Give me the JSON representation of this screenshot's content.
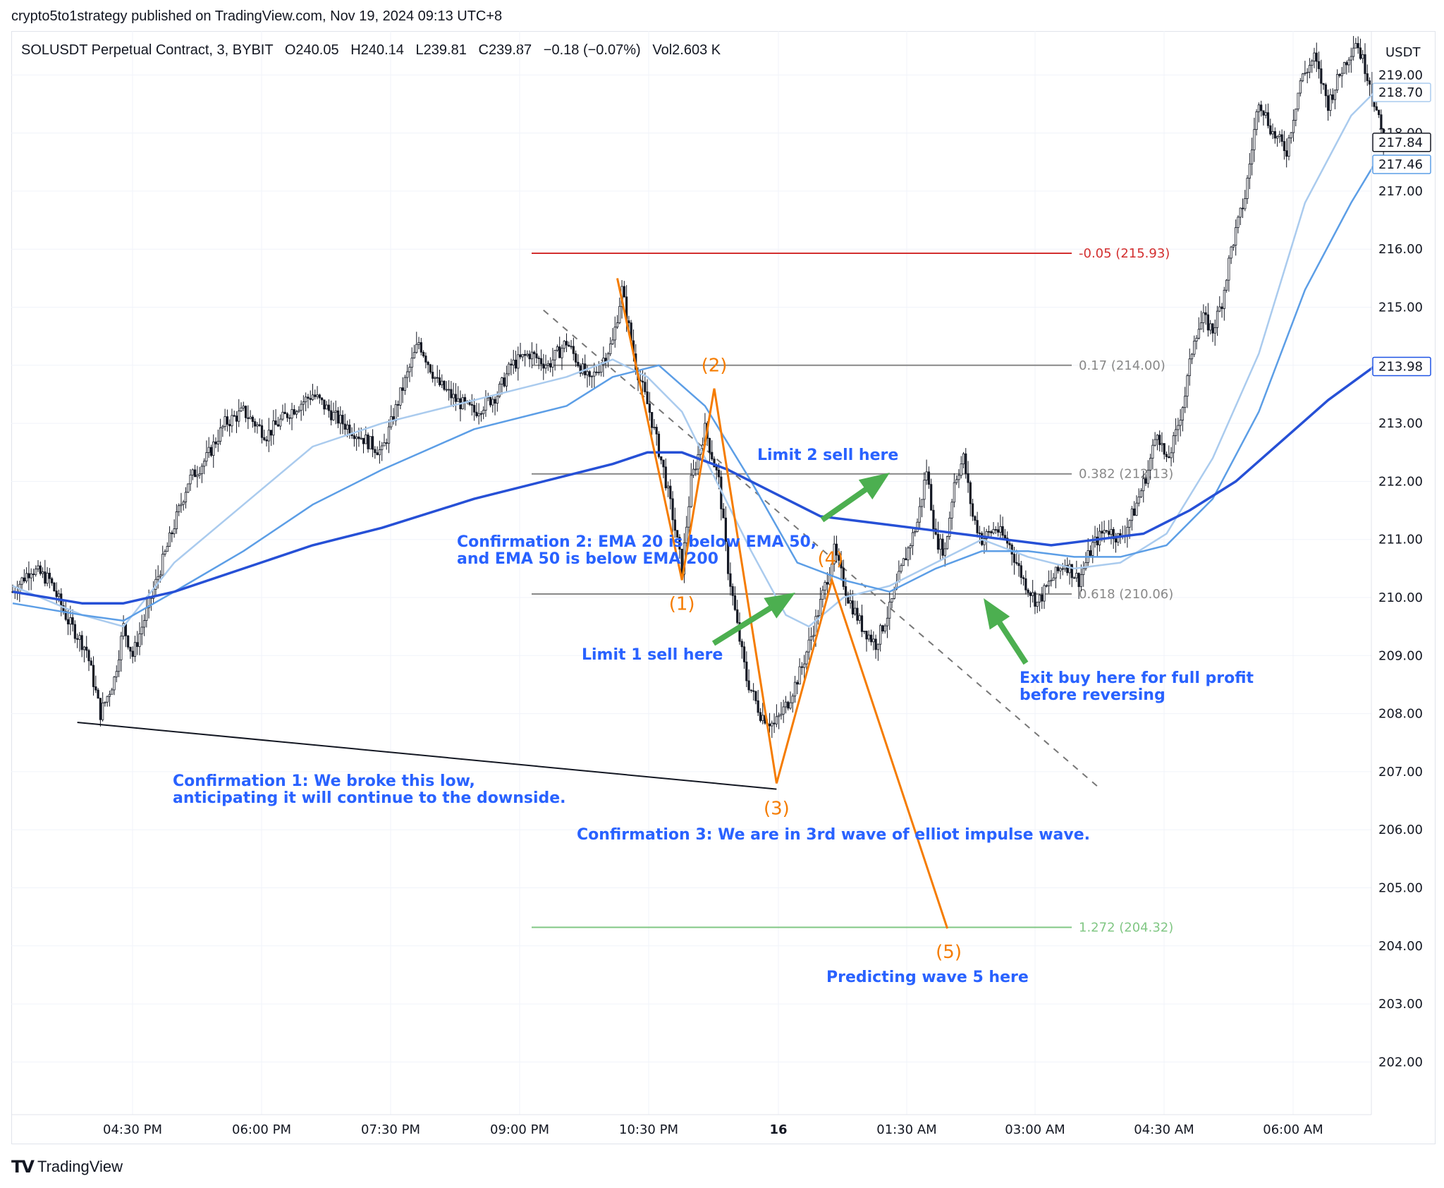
{
  "header": {
    "publisher": "crypto5to1strategy published on TradingView.com, Nov 19, 2024 09:13 UTC+8",
    "symbol_line": "SOLUSDT Perpetual Contract, 3, BYBIT   O240.05   H240.14   L239.81   C239.87   −0.18 (−0.07%)   Vol2.603 K"
  },
  "footer": {
    "brand": "TradingView",
    "logo": "TV"
  },
  "colors": {
    "ema20": "#aacbee",
    "ema50": "#5c9ee6",
    "ema200": "#2650d6",
    "wave": "#f57c00",
    "annotation": "#2962ff",
    "arrow": "#4caf50",
    "fib_red": "#d32f2f",
    "fib_grey": "#888888",
    "fib_green": "#81c784",
    "candle": "#131722"
  },
  "chart_data": {
    "type": "line",
    "title": "SOLUSDT Perpetual Contract, 3, BYBIT",
    "currency": "USDT",
    "xlabel": "",
    "ylabel": "",
    "x_ticks": [
      "04:30 PM",
      "06:00 PM",
      "07:30 PM",
      "09:00 PM",
      "10:30 PM",
      "16",
      "01:30 AM",
      "03:00 AM",
      "04:30 AM",
      "06:00 AM"
    ],
    "y_ticks": [
      "202.00",
      "203.00",
      "204.00",
      "205.00",
      "206.00",
      "207.00",
      "208.00",
      "209.00",
      "210.00",
      "211.00",
      "212.00",
      "213.00",
      "214.00",
      "215.00",
      "216.00",
      "217.00",
      "218.00",
      "219.00"
    ],
    "ylim": [
      201.2,
      219.9
    ],
    "grid": true,
    "price_labels": {
      "ema20": "218.70",
      "last": "217.84",
      "ema50": "217.46",
      "ema200": "213.98"
    },
    "price_path": [
      [
        0,
        210.1
      ],
      [
        8,
        210.5
      ],
      [
        16,
        210.3
      ],
      [
        24,
        209.6
      ],
      [
        32,
        209.1
      ],
      [
        38,
        208.0
      ],
      [
        44,
        208.6
      ],
      [
        48,
        209.5
      ],
      [
        52,
        209.0
      ],
      [
        60,
        210.0
      ],
      [
        68,
        211.0
      ],
      [
        76,
        212.0
      ],
      [
        84,
        212.4
      ],
      [
        92,
        213.0
      ],
      [
        100,
        213.2
      ],
      [
        110,
        212.8
      ],
      [
        120,
        213.2
      ],
      [
        130,
        213.5
      ],
      [
        140,
        213.1
      ],
      [
        150,
        212.8
      ],
      [
        160,
        212.5
      ],
      [
        168,
        213.5
      ],
      [
        176,
        214.4
      ],
      [
        184,
        213.7
      ],
      [
        192,
        213.4
      ],
      [
        200,
        213.2
      ],
      [
        210,
        213.5
      ],
      [
        216,
        214.0
      ],
      [
        224,
        214.2
      ],
      [
        232,
        214.0
      ],
      [
        240,
        214.4
      ],
      [
        250,
        213.7
      ],
      [
        260,
        214.4
      ],
      [
        264,
        215.3
      ],
      [
        270,
        214.0
      ],
      [
        276,
        213.2
      ],
      [
        282,
        212.2
      ],
      [
        286,
        211.4
      ],
      [
        290,
        210.5
      ],
      [
        294,
        212.0
      ],
      [
        300,
        212.9
      ],
      [
        306,
        212.0
      ],
      [
        310,
        210.5
      ],
      [
        314,
        209.5
      ],
      [
        318,
        208.6
      ],
      [
        324,
        208.0
      ],
      [
        330,
        207.8
      ],
      [
        336,
        208.2
      ],
      [
        342,
        208.8
      ],
      [
        348,
        209.6
      ],
      [
        352,
        210.2
      ],
      [
        356,
        210.8
      ],
      [
        362,
        210.0
      ],
      [
        368,
        209.5
      ],
      [
        374,
        209.2
      ],
      [
        380,
        209.8
      ],
      [
        386,
        210.6
      ],
      [
        392,
        211.3
      ],
      [
        396,
        212.2
      ],
      [
        400,
        211.0
      ],
      [
        404,
        210.8
      ],
      [
        408,
        212.0
      ],
      [
        412,
        212.4
      ],
      [
        416,
        211.4
      ],
      [
        420,
        211.0
      ],
      [
        426,
        211.2
      ],
      [
        432,
        210.9
      ],
      [
        438,
        210.3
      ],
      [
        444,
        209.9
      ],
      [
        450,
        210.3
      ],
      [
        456,
        210.6
      ],
      [
        462,
        210.3
      ],
      [
        468,
        210.9
      ],
      [
        474,
        211.2
      ],
      [
        480,
        211.0
      ],
      [
        486,
        211.5
      ],
      [
        492,
        212.2
      ],
      [
        496,
        212.9
      ],
      [
        500,
        212.3
      ],
      [
        504,
        212.8
      ],
      [
        508,
        213.5
      ],
      [
        512,
        214.5
      ],
      [
        516,
        214.8
      ],
      [
        520,
        214.6
      ],
      [
        524,
        215.1
      ],
      [
        528,
        216.0
      ],
      [
        534,
        216.9
      ],
      [
        540,
        218.6
      ],
      [
        546,
        218.0
      ],
      [
        552,
        217.7
      ],
      [
        558,
        218.9
      ],
      [
        564,
        219.3
      ],
      [
        570,
        218.5
      ],
      [
        576,
        219.1
      ],
      [
        582,
        219.6
      ],
      [
        588,
        218.9
      ],
      [
        594,
        217.84
      ]
    ],
    "series": [
      {
        "name": "EMA 20",
        "label": "218.70",
        "x": [
          0,
          30,
          48,
          70,
          100,
          130,
          160,
          200,
          240,
          260,
          275,
          290,
          305,
          320,
          335,
          345,
          360,
          380,
          400,
          420,
          440,
          460,
          480,
          500,
          520,
          540,
          560,
          580,
          590
        ],
        "values": [
          210.2,
          209.7,
          209.5,
          210.6,
          211.6,
          212.6,
          213.0,
          213.4,
          213.8,
          214.1,
          213.8,
          213.2,
          212.0,
          210.8,
          209.7,
          209.5,
          210.0,
          210.2,
          210.6,
          211.0,
          210.7,
          210.5,
          210.6,
          211.1,
          212.4,
          214.2,
          216.8,
          218.3,
          218.7
        ]
      },
      {
        "name": "EMA 50",
        "label": "217.46",
        "x": [
          0,
          30,
          48,
          70,
          100,
          130,
          160,
          200,
          240,
          260,
          280,
          300,
          320,
          340,
          360,
          380,
          400,
          420,
          440,
          460,
          480,
          500,
          520,
          540,
          560,
          580,
          590
        ],
        "values": [
          209.9,
          209.7,
          209.6,
          210.1,
          210.8,
          211.6,
          212.2,
          212.9,
          213.3,
          213.8,
          214.0,
          213.3,
          212.0,
          210.6,
          210.3,
          210.1,
          210.5,
          210.8,
          210.8,
          210.7,
          210.7,
          210.9,
          211.7,
          213.2,
          215.3,
          216.8,
          217.46
        ]
      },
      {
        "name": "EMA 200",
        "label": "213.98",
        "x": [
          0,
          30,
          48,
          70,
          100,
          130,
          160,
          200,
          240,
          260,
          275,
          290,
          310,
          330,
          350,
          370,
          390,
          410,
          430,
          450,
          470,
          490,
          510,
          530,
          550,
          570,
          590
        ],
        "values": [
          210.1,
          209.9,
          209.9,
          210.1,
          210.5,
          210.9,
          211.2,
          211.7,
          212.1,
          212.3,
          212.5,
          212.5,
          212.2,
          211.8,
          211.4,
          211.3,
          211.2,
          211.1,
          211.0,
          210.9,
          211.0,
          211.1,
          211.5,
          212.0,
          212.7,
          213.4,
          213.98
        ]
      }
    ],
    "fib_levels": [
      {
        "label": "-0.05 (215.93)",
        "price": 215.93,
        "color": "#d32f2f"
      },
      {
        "label": "0.17 (214.00)",
        "price": 214.0,
        "color": "#888888"
      },
      {
        "label": "0.382 (212.13)",
        "price": 212.13,
        "color": "#888888"
      },
      {
        "label": "0.618 (210.06)",
        "price": 210.06,
        "color": "#888888"
      },
      {
        "label": "1.272 (204.32)",
        "price": 204.32,
        "color": "#81c784"
      }
    ],
    "elliott_waves": [
      {
        "label": "",
        "bar": 262,
        "price": 215.5
      },
      {
        "label": "(1)",
        "bar": 290,
        "price": 210.3
      },
      {
        "label": "(2)",
        "bar": 304,
        "price": 213.6
      },
      {
        "label": "(3)",
        "bar": 331,
        "price": 206.8
      },
      {
        "label": "(4)",
        "bar": 355,
        "price": 210.3
      },
      {
        "label": "(5)",
        "bar": 405,
        "price": 204.3
      }
    ],
    "annotations": [
      {
        "id": "confirmation-1",
        "lines": [
          "Confirmation 1: We broke this low,",
          "anticipating it will continue to the downside."
        ]
      },
      {
        "id": "confirmation-2",
        "lines": [
          "Confirmation 2: EMA 20 is below EMA 50,",
          "and EMA 50 is below EMA 200"
        ]
      },
      {
        "id": "confirmation-3",
        "lines": [
          "Confirmation 3: We are in 3rd wave of elliot impulse wave."
        ]
      },
      {
        "id": "limit-1",
        "lines": [
          "Limit 1 sell here"
        ]
      },
      {
        "id": "limit-2",
        "lines": [
          "Limit 2 sell here"
        ]
      },
      {
        "id": "exit",
        "lines": [
          "Exit buy here for full profit",
          "before reversing"
        ]
      },
      {
        "id": "wave-5",
        "lines": [
          "Predicting wave 5 here"
        ]
      }
    ]
  }
}
